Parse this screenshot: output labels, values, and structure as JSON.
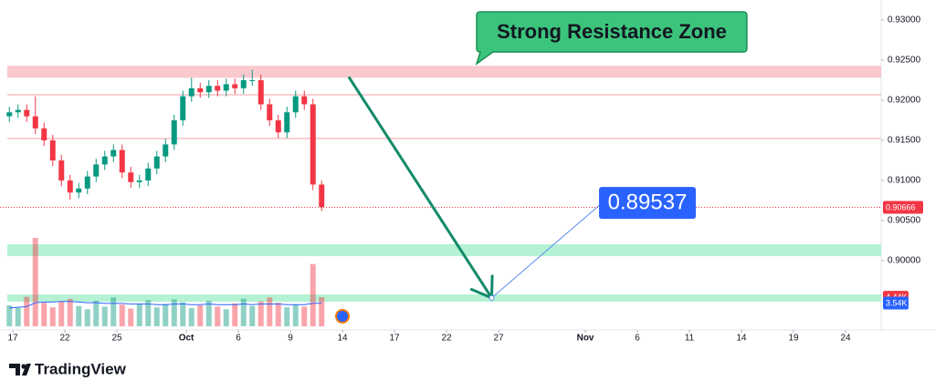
{
  "chart_data": {
    "type": "candlestick",
    "x": [
      -0.2,
      0.3,
      0.8,
      1.3,
      1.8,
      2.3,
      2.8,
      3.3,
      3.8,
      4.3,
      4.8,
      5.3,
      5.8,
      6.3,
      6.8,
      7.3,
      7.8,
      8.3,
      8.8,
      9.3,
      9.8,
      10.3,
      10.8,
      11.3,
      11.8,
      12.3,
      12.8,
      13.3,
      13.8,
      14.3,
      14.8,
      15.3,
      15.8,
      16.3,
      16.8,
      17.3,
      17.8
    ],
    "open": [
      0.918,
      0.9185,
      0.9188,
      0.918,
      0.9165,
      0.915,
      0.9125,
      0.91,
      0.9085,
      0.909,
      0.9105,
      0.912,
      0.913,
      0.9138,
      0.911,
      0.9098,
      0.91,
      0.9115,
      0.913,
      0.9145,
      0.9175,
      0.9205,
      0.9215,
      0.921,
      0.9218,
      0.9212,
      0.922,
      0.9215,
      0.9225,
      0.9225,
      0.9195,
      0.9175,
      0.916,
      0.9185,
      0.9205,
      0.9195,
      0.9095
    ],
    "high": [
      0.9192,
      0.9195,
      0.9195,
      0.9205,
      0.9172,
      0.9157,
      0.9132,
      0.9107,
      0.9097,
      0.9112,
      0.9127,
      0.9137,
      0.9145,
      0.9145,
      0.9117,
      0.9107,
      0.9122,
      0.9137,
      0.9152,
      0.9182,
      0.9212,
      0.9228,
      0.9222,
      0.9225,
      0.9225,
      0.9227,
      0.9227,
      0.9232,
      0.9238,
      0.9232,
      0.9202,
      0.9182,
      0.9192,
      0.9212,
      0.9212,
      0.9202,
      0.91
    ],
    "low": [
      0.9173,
      0.9178,
      0.9173,
      0.9158,
      0.9143,
      0.9118,
      0.9093,
      0.9076,
      0.9078,
      0.9083,
      0.9098,
      0.9113,
      0.9123,
      0.9103,
      0.9091,
      0.9091,
      0.9093,
      0.9108,
      0.9123,
      0.9138,
      0.9168,
      0.9198,
      0.9203,
      0.9203,
      0.9205,
      0.9205,
      0.9208,
      0.9208,
      0.9218,
      0.9188,
      0.9168,
      0.9153,
      0.9153,
      0.9178,
      0.9188,
      0.9088,
      0.9062
    ],
    "close": [
      0.9185,
      0.9188,
      0.918,
      0.9165,
      0.915,
      0.9125,
      0.91,
      0.9085,
      0.909,
      0.9105,
      0.912,
      0.913,
      0.9138,
      0.911,
      0.9098,
      0.91,
      0.9115,
      0.913,
      0.9145,
      0.9175,
      0.9205,
      0.9215,
      0.921,
      0.9218,
      0.9212,
      0.922,
      0.9215,
      0.9225,
      0.9225,
      0.9195,
      0.9175,
      0.916,
      0.9185,
      0.9205,
      0.9195,
      0.9095,
      0.9067
    ],
    "up_color": "#089981",
    "down_color": "#f23645",
    "xlim": [
      -0.74,
      50.05
    ],
    "ylim": [
      0.8916,
      0.9325
    ],
    "xticks": [
      {
        "value": 0,
        "label": "17"
      },
      {
        "value": 3,
        "label": "22"
      },
      {
        "value": 6,
        "label": "25"
      },
      {
        "value": 10,
        "label": "Oct"
      },
      {
        "value": 13,
        "label": "6"
      },
      {
        "value": 16,
        "label": "9"
      },
      {
        "value": 19,
        "label": "14"
      },
      {
        "value": 22,
        "label": "17"
      },
      {
        "value": 25,
        "label": "22"
      },
      {
        "value": 28,
        "label": "27"
      },
      {
        "value": 33,
        "label": "Nov"
      },
      {
        "value": 36,
        "label": "6"
      },
      {
        "value": 39,
        "label": "11"
      },
      {
        "value": 42,
        "label": "14"
      },
      {
        "value": 45,
        "label": "19"
      },
      {
        "value": 48,
        "label": "24"
      }
    ],
    "yticks": [
      {
        "value": 0.93,
        "label": "0.93000"
      },
      {
        "value": 0.925,
        "label": "0.92500"
      },
      {
        "value": 0.92,
        "label": "0.92000"
      },
      {
        "value": 0.915,
        "label": "0.91500"
      },
      {
        "value": 0.91,
        "label": "0.91000"
      },
      {
        "value": 0.905,
        "label": "0.90500"
      },
      {
        "value": 0.9,
        "label": "0.90000"
      }
    ],
    "grid": false,
    "zones": [
      {
        "from": 0.9228,
        "to": 0.9243,
        "color": "#f9c0c4"
      },
      {
        "from": 0.90057,
        "to": 0.90205,
        "color": "#a8f0cc"
      },
      {
        "from": 0.89489,
        "to": 0.8958,
        "color": "#a8f0cc"
      }
    ],
    "levels": [
      {
        "value": 0.92068,
        "color": "#f7a0a6"
      },
      {
        "value": 0.91523,
        "color": "#f7a0a6"
      }
    ],
    "last_price": {
      "value": 0.90666,
      "label": "0.90666",
      "color": "#f23645"
    },
    "arrow": {
      "x": [
        19.4,
        27.6
      ],
      "y": [
        0.9228,
        0.89537
      ],
      "color": "#138a6a"
    },
    "target_line": {
      "x": [
        27.6,
        34.0
      ],
      "y": [
        0.89537,
        0.90727
      ],
      "color": "#5b8def"
    },
    "target": {
      "value": 0.89537,
      "label": "0.89537",
      "color": "#2962ff"
    },
    "callout": "Strong Resistance Zone",
    "volume": {
      "vlim": [
        0,
        16
      ],
      "values": [
        3.2,
        2.8,
        4.5,
        13.5,
        3.6,
        2.9,
        3.8,
        4.2,
        3.1,
        2.6,
        3.9,
        3.0,
        4.4,
        3.3,
        2.7,
        3.5,
        4.0,
        2.9,
        3.4,
        4.1,
        3.7,
        2.8,
        3.2,
        3.9,
        3.0,
        2.6,
        3.5,
        4.2,
        3.1,
        3.8,
        4.4,
        3.6,
        2.9,
        3.3,
        3.0,
        9.5,
        4.44
      ],
      "last_label": "4.44K"
    },
    "volume_ma": {
      "color": "#2962ff",
      "values": [
        2.8,
        2.9,
        3.0,
        3.6,
        3.7,
        3.7,
        3.8,
        3.8,
        3.7,
        3.6,
        3.6,
        3.5,
        3.5,
        3.5,
        3.4,
        3.4,
        3.4,
        3.3,
        3.3,
        3.4,
        3.4,
        3.3,
        3.3,
        3.4,
        3.3,
        3.3,
        3.3,
        3.4,
        3.3,
        3.4,
        3.4,
        3.4,
        3.3,
        3.3,
        3.3,
        3.5,
        3.54
      ],
      "last_label": "3.54K"
    },
    "brand": "TradingView"
  }
}
